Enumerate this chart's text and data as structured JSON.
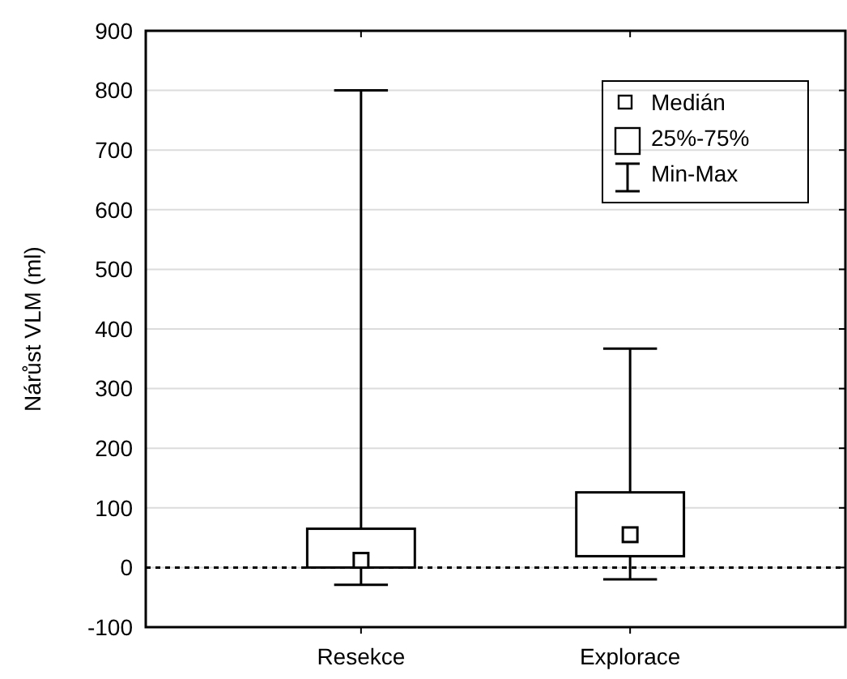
{
  "chart_data": {
    "type": "box",
    "ylabel": "Nárůst VLM (ml)",
    "categories": [
      "Resekce",
      "Explorace"
    ],
    "boxes": [
      {
        "low": -29,
        "q1": 0,
        "median": 12,
        "q3": 65,
        "high": 800
      },
      {
        "low": -20,
        "q1": 19,
        "median": 55,
        "q3": 126,
        "high": 367
      }
    ],
    "ylim": [
      -100,
      900
    ],
    "yticks": [
      -100,
      0,
      100,
      200,
      300,
      400,
      500,
      600,
      700,
      800,
      900
    ],
    "grid": "y",
    "annotations": [
      "Medián",
      "25%-75%",
      "Min-Max"
    ],
    "ref_lines": [
      {
        "axis": "y",
        "value": 0,
        "line_style": "dotted",
        "color": "#000000"
      }
    ]
  }
}
